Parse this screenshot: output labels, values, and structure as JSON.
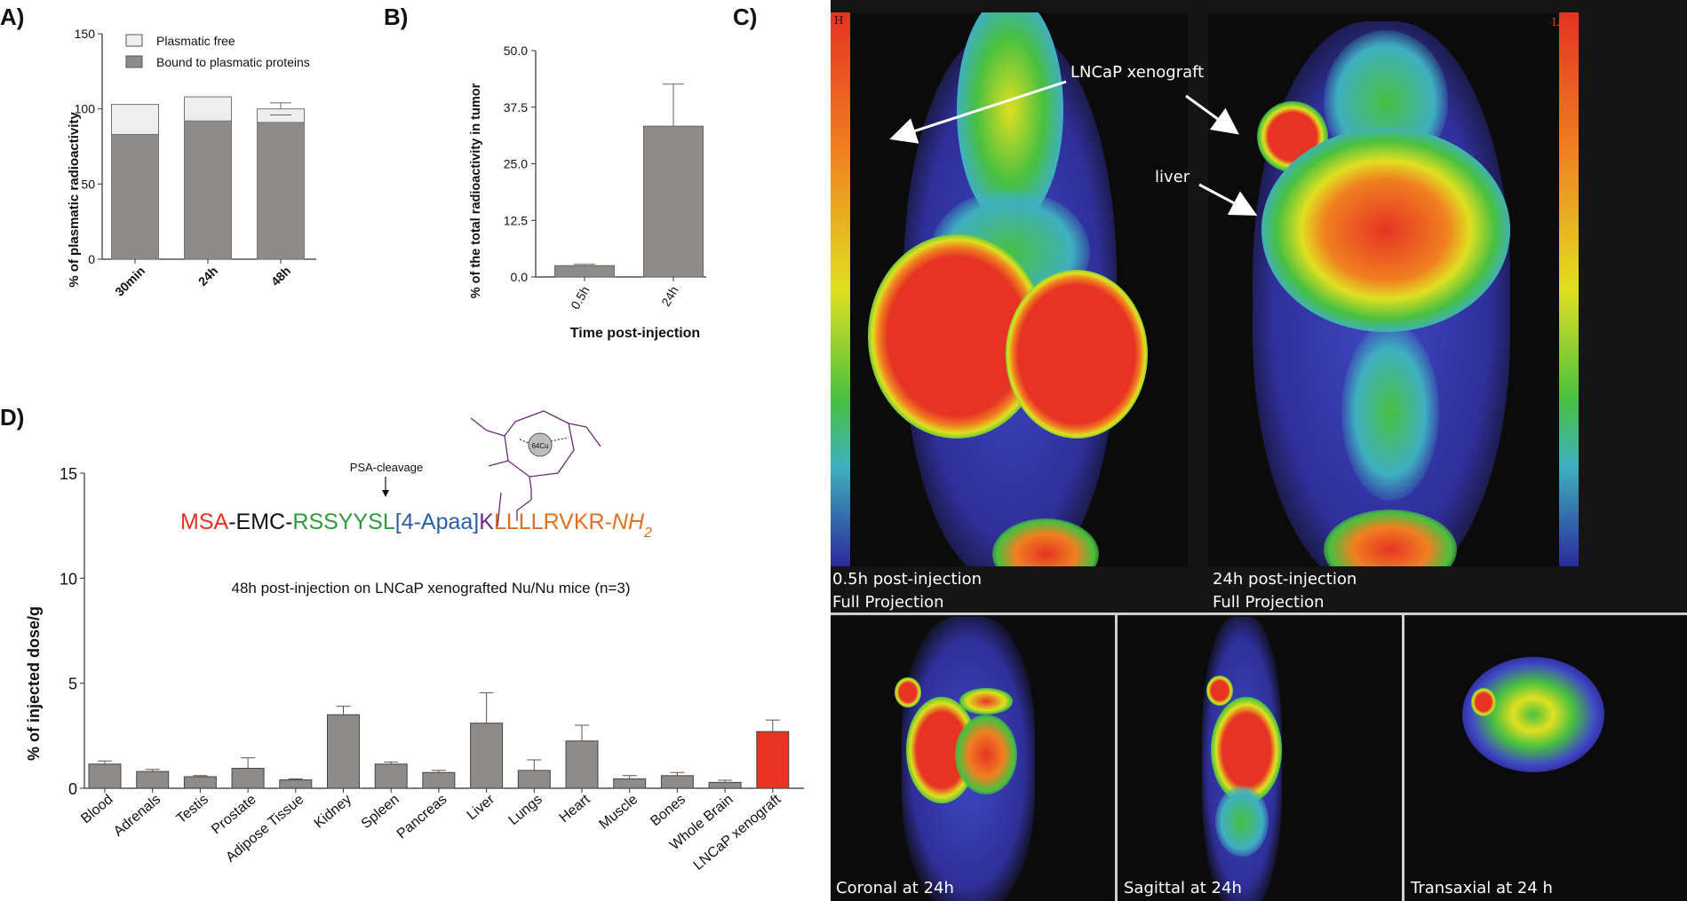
{
  "panels": {
    "A": {
      "label": "A)"
    },
    "B": {
      "label": "B)"
    },
    "C": {
      "label": "C)"
    },
    "D": {
      "label": "D)"
    }
  },
  "chart_data": [
    {
      "id": "A",
      "type": "bar",
      "stacked": true,
      "categories": [
        "30min",
        "24h",
        "48h"
      ],
      "series": [
        {
          "name": "Bound to plasmatic proteins",
          "values": [
            83,
            92,
            91
          ],
          "color": "#8e8b89"
        },
        {
          "name": "Plasmatic free",
          "values": [
            20,
            16,
            9
          ],
          "color": "#eeeeee"
        }
      ],
      "error_bars": [
        null,
        null,
        4
      ],
      "ylabel": "% of plasmatic radioactivity",
      "ylim": [
        0,
        150
      ],
      "yticks": [
        "0",
        "50",
        "100",
        "150"
      ],
      "legend_position": "top-left"
    },
    {
      "id": "B",
      "type": "bar",
      "categories": [
        "0.5h",
        "24h"
      ],
      "values": [
        2.5,
        33.3
      ],
      "errors": [
        0.3,
        9.3
      ],
      "color": "#8e8b89",
      "xlabel": "Time post-injection",
      "ylabel": "% of the total radioactivity in tumor",
      "ylim": [
        0,
        50
      ],
      "yticks": [
        "0.0",
        "12.5",
        "25.0",
        "37.5",
        "50.0"
      ]
    },
    {
      "id": "D",
      "type": "bar",
      "categories": [
        "Blood",
        "Adrenals",
        "Testis",
        "Prostate",
        "Adipose Tissue",
        "Kidney",
        "Spleen",
        "Pancreas",
        "Liver",
        "Lungs",
        "Heart",
        "Muscle",
        "Bones",
        "Whole Brain",
        "LNCaP xenograft"
      ],
      "values": [
        1.15,
        0.8,
        0.55,
        0.95,
        0.4,
        3.5,
        1.15,
        0.75,
        3.1,
        0.85,
        2.25,
        0.45,
        0.6,
        0.28,
        2.7
      ],
      "errors": [
        0.15,
        0.1,
        0.05,
        0.5,
        0.05,
        0.4,
        0.1,
        0.1,
        1.45,
        0.5,
        0.75,
        0.15,
        0.15,
        0.1,
        0.55
      ],
      "colors": {
        "default": "#8e8b89",
        "highlight": "#e63323"
      },
      "highlight_index": 14,
      "ylabel": "% of injected dose/g",
      "ylim": [
        0,
        15
      ],
      "yticks": [
        "0",
        "5",
        "10",
        "15"
      ],
      "annotation": "48h post-injection on LNCaP xenografted Nu/Nu mice (n=3)",
      "cleavage_label": "PSA-cleavage",
      "sequence": [
        {
          "text": "MSA",
          "color": "#e63323",
          "italic": false
        },
        {
          "text": "-EMC-",
          "color": "#111111",
          "italic": false
        },
        {
          "text": "RSSYYSL",
          "color": "#2e9a3c",
          "italic": false
        },
        {
          "text": "[4-Apaa]",
          "color": "#2a5fa8",
          "italic": false
        },
        {
          "text": "K",
          "color": "#6b2a7a",
          "italic": false
        },
        {
          "text": "LLLLRVKR-",
          "color": "#e07020",
          "italic": false
        },
        {
          "text": "NH",
          "color": "#e07020",
          "italic": true
        },
        {
          "text": "2",
          "color": "#e07020",
          "italic": true,
          "subscript": true
        }
      ],
      "chelator_label": "64Cu"
    }
  ],
  "pet": {
    "colors": [
      "#2a2a9a",
      "#3b5fd0",
      "#3fb0c0",
      "#48c040",
      "#e0e020",
      "#f08020",
      "#e63323"
    ],
    "scale_high_label": "H",
    "scale_low_label": "L",
    "scan_1": {
      "line1": "0.5h post-injection",
      "line2": "Full Projection"
    },
    "scan_2": {
      "line1": "24h post-injection",
      "line2": "Full Projection"
    },
    "arrow_xenograft_label": "LNCaP xenograft",
    "arrow_liver_label": "liver",
    "views": [
      {
        "label": "Coronal at 24h"
      },
      {
        "label": "Sagittal at 24h"
      },
      {
        "label": "Transaxial at 24 h"
      }
    ]
  }
}
